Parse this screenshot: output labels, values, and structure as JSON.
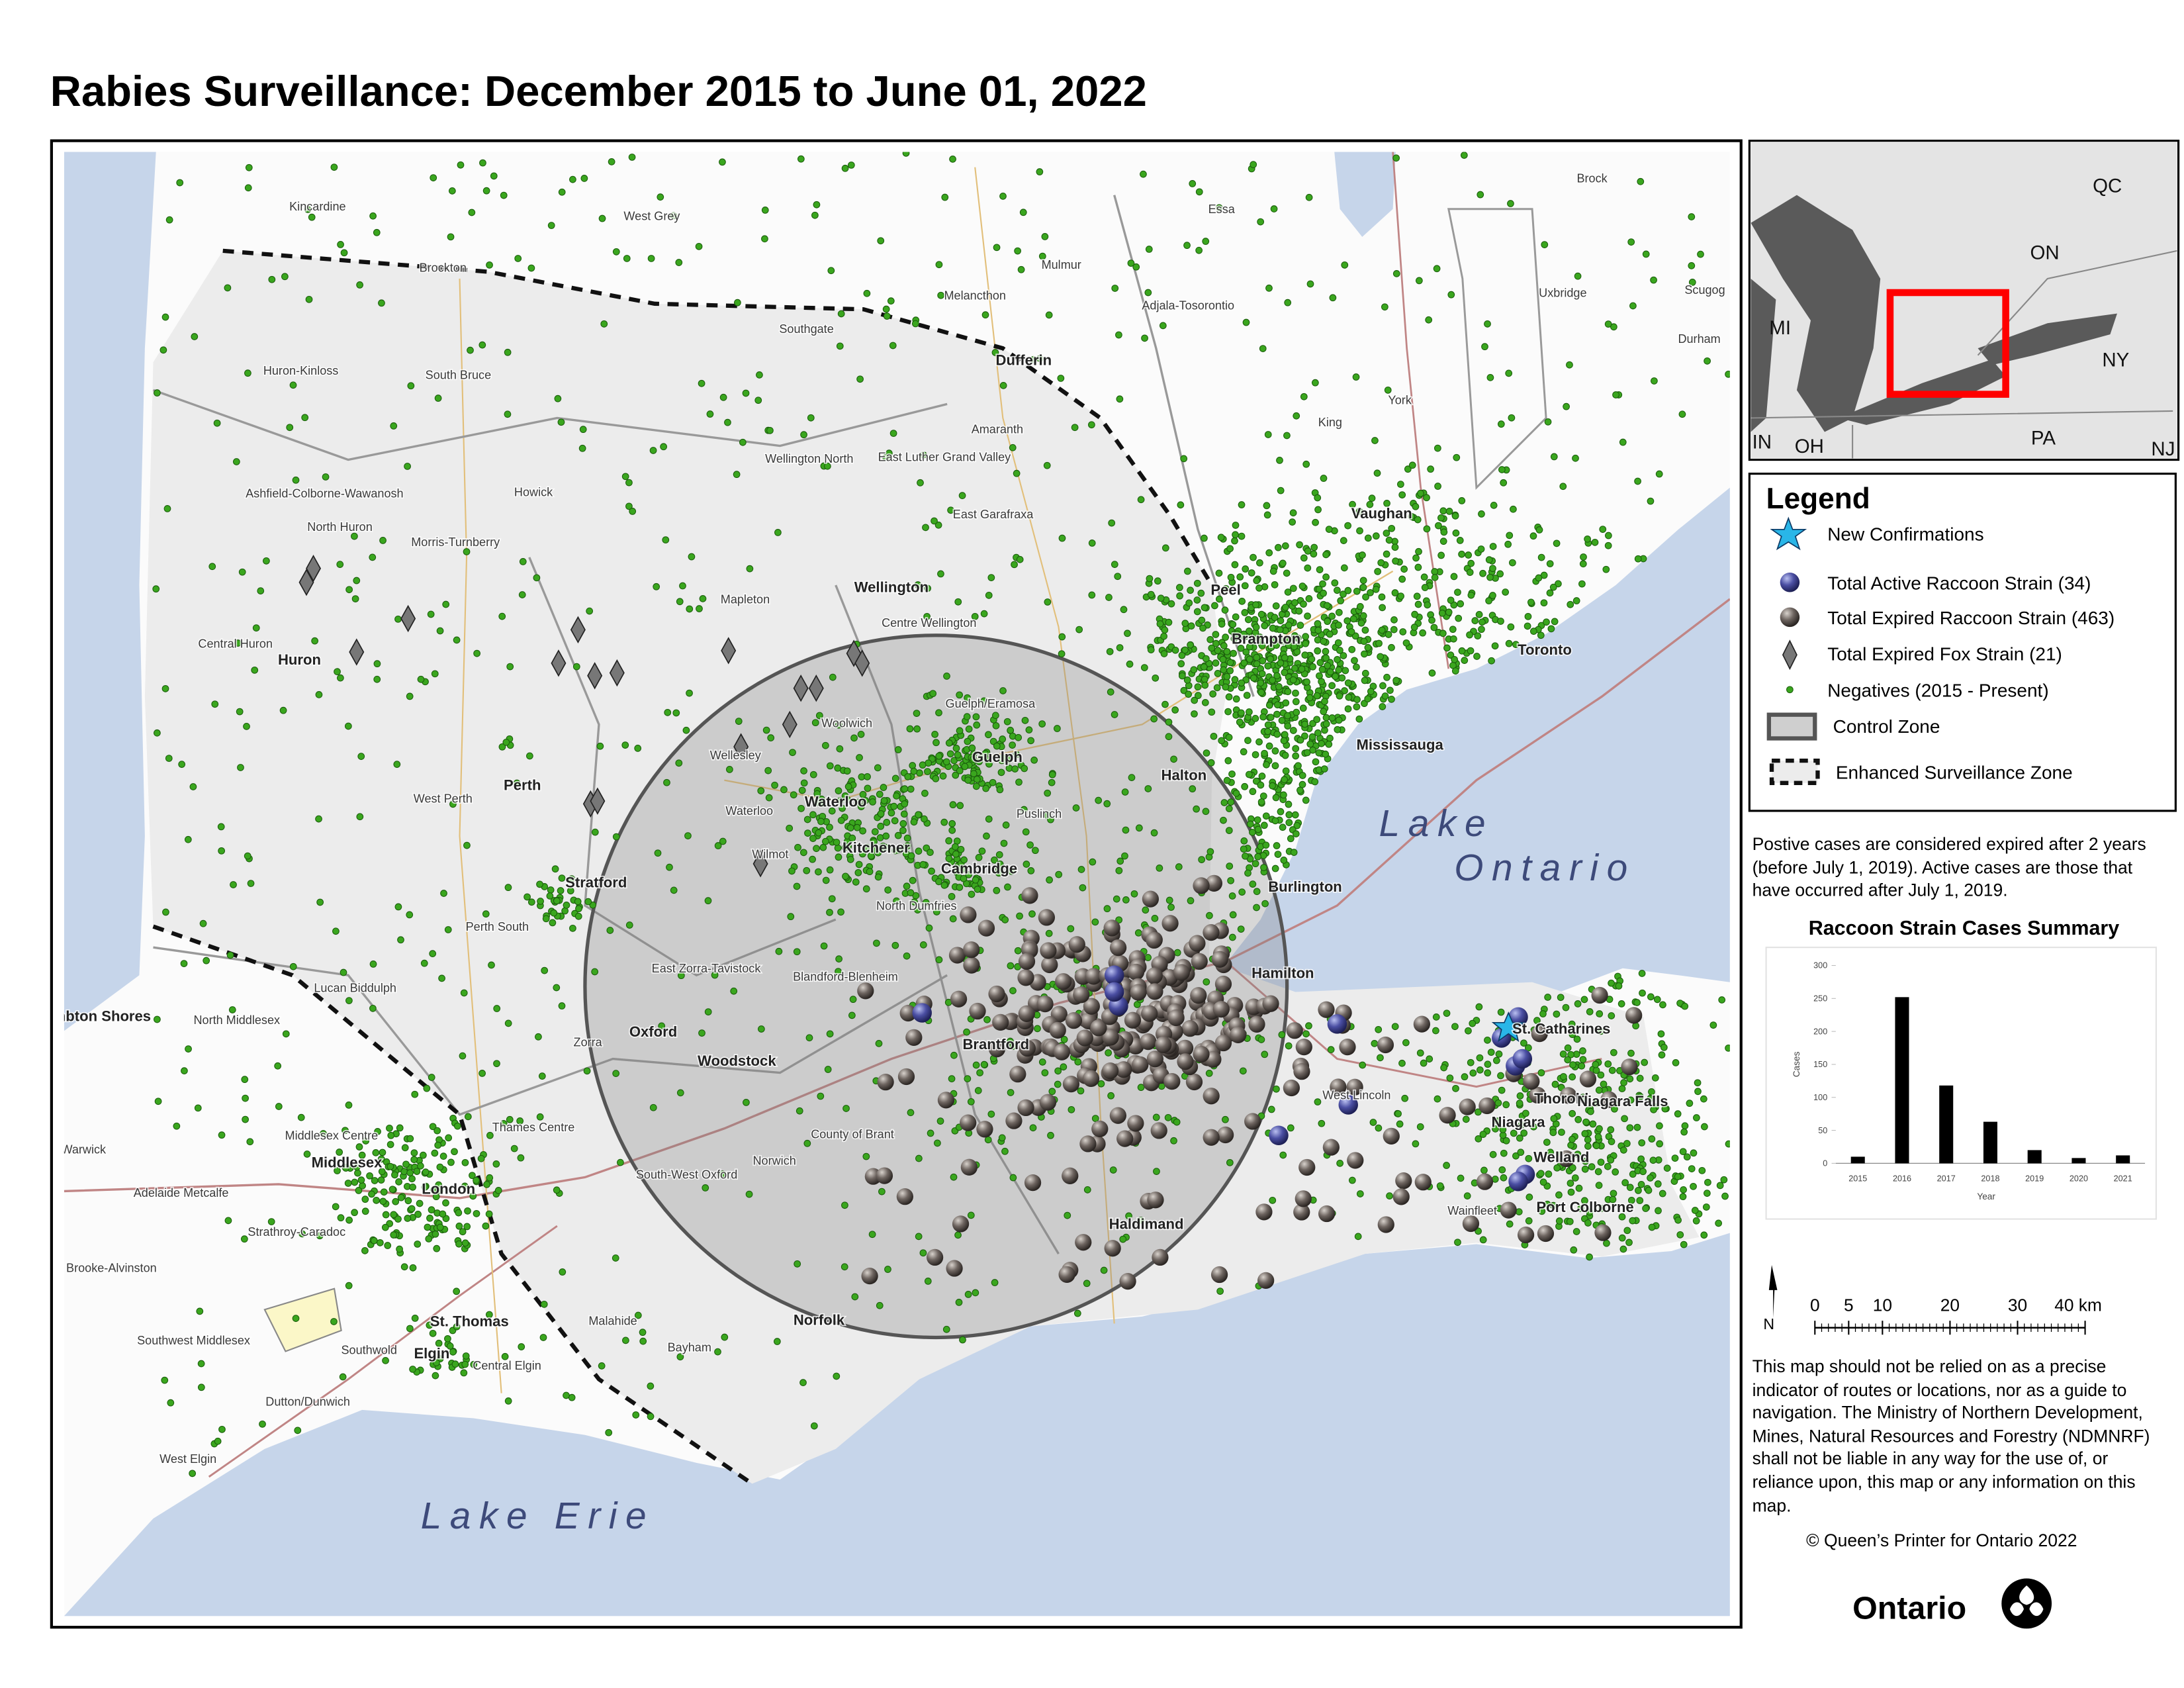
{
  "title": "Rabies Surveillance: December 2015 to June 01, 2022",
  "map": {
    "labels": [
      "Kincardine",
      "West Grey",
      "Essa",
      "Brock",
      "Brockton",
      "Mulmur",
      "Melancthon",
      "Adjala-Tosorontio",
      "Uxbridge",
      "Scugog",
      "Southgate",
      "Durham",
      "Huron-Kinloss",
      "South Bruce",
      "Dufferin",
      "York",
      "Amaranth",
      "King",
      "Wellington North",
      "East Luther Grand Valley",
      "Ashfield-Colborne-Wawanosh",
      "Howick",
      "North Huron",
      "Morris-Turnberry",
      "East Garafraxa",
      "Vaughan",
      "Peel",
      "Wellington",
      "Mapleton",
      "Centre Wellington",
      "Central Huron",
      "Huron",
      "Brampton",
      "Toronto",
      "Woolwich",
      "Guelph/Eramosa",
      "Guelph",
      "Wellesley",
      "Mississauga",
      "Halton",
      "Waterloo",
      "Perth",
      "West Perth",
      "Puslinch",
      "Waterloo",
      "Kitchener",
      "Wilmot",
      "Cambridge",
      "Burlington",
      "Stratford",
      "North Dumfries",
      "Perth South",
      "Hamilton",
      "East Zorra-Tavistock",
      "Blandford-Blenheim",
      "Lucan Biddulph",
      "Lambton Shores",
      "North Middlesex",
      "Oxford",
      "Brantford",
      "Zorra",
      "Woodstock",
      "St. Catharines",
      "West Lincoln",
      "Thorold",
      "Niagara Falls",
      "Thames Centre",
      "Middlesex Centre",
      "Niagara",
      "Middlesex",
      "County of Brant",
      "Warwick",
      "Welland",
      "Norwich",
      "South-West Oxford",
      "London",
      "Adelaide Metcalfe",
      "Port Colborne",
      "Wainfleet",
      "Haldimand",
      "Strathroy-Caradoc",
      "Brooke-Alvinston",
      "Norfolk",
      "St. Thomas",
      "Malahide",
      "Southwest Middlesex",
      "Southwold",
      "Elgin",
      "Central Elgin",
      "Bayham",
      "Dutton/Dunwich",
      "West Elgin"
    ],
    "lakes": [
      {
        "lines": [
          "Lake",
          "Ontario"
        ]
      },
      {
        "lines": [
          "Lake Erie"
        ]
      }
    ]
  },
  "inset": {
    "labels": [
      "QC",
      "ON",
      "MI",
      "NY",
      "IN",
      "OH",
      "PA",
      "NJ"
    ]
  },
  "legend": {
    "title": "Legend",
    "items": [
      "New Confirmations",
      "Total Active Raccoon Strain (34)",
      "Total Expired Raccoon Strain (463)",
      "Total Expired Fox Strain (21)",
      "Negatives (2015 - Present)",
      "Control Zone",
      "Enhanced Surveillance Zone"
    ]
  },
  "note": "Postive cases are considered expired after 2 years (before July 1, 2019). Active cases are those that have occurred after July 1, 2019.",
  "chart_data": {
    "type": "bar",
    "title": "Raccoon Strain Cases Summary",
    "x_label": "Year",
    "y_label": "Cases",
    "categories": [
      "2015",
      "2016",
      "2017",
      "2018",
      "2019",
      "2020",
      "2021"
    ],
    "values": [
      10,
      252,
      118,
      63,
      20,
      8,
      12
    ],
    "color": "#000000",
    "ylim": [
      0,
      300
    ],
    "yticks": [
      0,
      50,
      100,
      150,
      200,
      250,
      300
    ]
  },
  "scale": {
    "north": "N",
    "ticks": [
      0,
      5,
      10,
      20,
      30,
      {
        "value": 40,
        "label": "40 km"
      }
    ]
  },
  "disclaimer": "This map should not be relied on as a precise indicator of routes or locations, nor as a guide to navigation. The Ministry of Northern Development, Mines, Natural Resources and Forestry (NDMNRF) shall not be liable in any way for the use of, or reliance upon, this map or any information on this map.",
  "copyright": "© Queen’s Printer for Ontario 2022",
  "logo": "Ontario"
}
